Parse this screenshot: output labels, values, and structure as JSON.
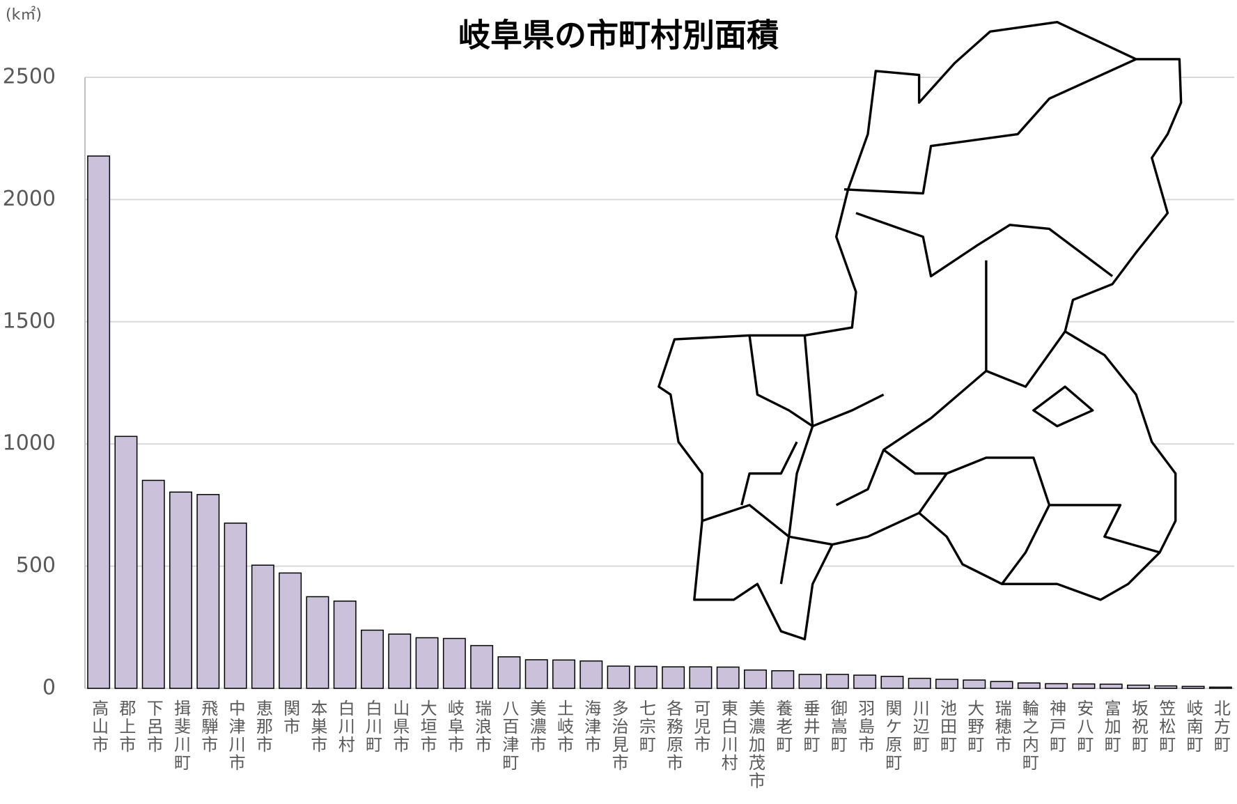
{
  "chart_data": {
    "type": "bar",
    "title": "岐阜県の市町村別面積",
    "y_unit": "(k㎡)",
    "categories": [
      "高山市",
      "郡上市",
      "下呂市",
      "揖斐川町",
      "飛騨市",
      "中津川市",
      "恵那市",
      "関市",
      "本巣市",
      "白川村",
      "白川町",
      "山県市",
      "大垣市",
      "岐阜市",
      "瑞浪市",
      "八百津町",
      "美濃市",
      "土岐市",
      "海津市",
      "多治見市",
      "七宗町",
      "各務原市",
      "可児市",
      "東白川村",
      "美濃加茂市",
      "養老町",
      "垂井町",
      "御嵩町",
      "羽島市",
      "関ケ原町",
      "川辺町",
      "池田町",
      "大野町",
      "瑞穂市",
      "輪之内町",
      "神戸町",
      "安八町",
      "富加町",
      "坂祝町",
      "笠松町",
      "岐南町",
      "北方町"
    ],
    "values": [
      2178,
      1031,
      851,
      803,
      793,
      676,
      504,
      472,
      375,
      357,
      238,
      222,
      207,
      204,
      175,
      129,
      117,
      116,
      112,
      91,
      90,
      88,
      88,
      87,
      75,
      72,
      57,
      57,
      54,
      49,
      41,
      37,
      34,
      28,
      22,
      19,
      18,
      17,
      13,
      10,
      8,
      5
    ],
    "color": "#ccc1da",
    "ylim": [
      0,
      2500
    ],
    "yticks": [
      0,
      500,
      1000,
      1500,
      2000,
      2500
    ],
    "grid": true
  }
}
